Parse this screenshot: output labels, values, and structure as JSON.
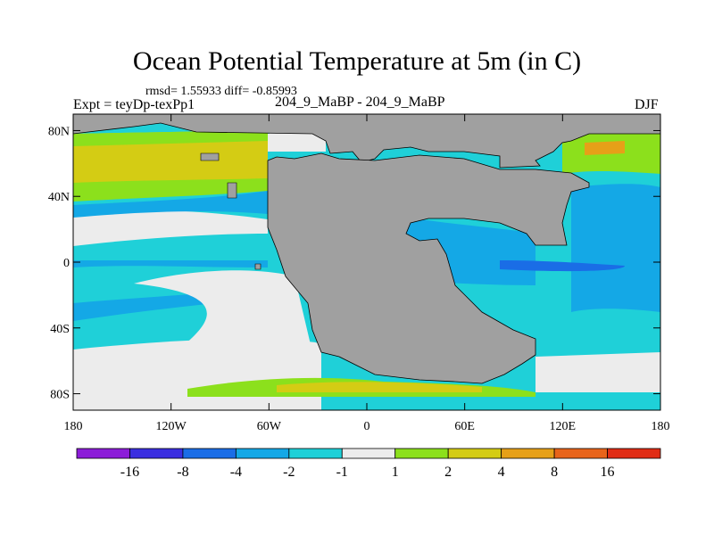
{
  "title": "Ocean Potential Temperature at 5m (in C)",
  "stats": "rmsd= 1.55933  diff= -0.85993",
  "experiment": "Expt = teyDp-texPp1",
  "period": "204_9_MaBP - 204_9_MaBP",
  "season": "DJF",
  "map": {
    "lon_range": [
      -180,
      180
    ],
    "lat_range": [
      -90,
      90
    ],
    "land_color": "#a0a0a0",
    "x_ticks": [
      {
        "lon": -180,
        "label": "180"
      },
      {
        "lon": -120,
        "label": "120W"
      },
      {
        "lon": -60,
        "label": "60W"
      },
      {
        "lon": 0,
        "label": "0"
      },
      {
        "lon": 60,
        "label": "60E"
      },
      {
        "lon": 120,
        "label": "120E"
      },
      {
        "lon": 180,
        "label": "180"
      }
    ],
    "y_ticks": [
      {
        "lat": 80,
        "label": "80N"
      },
      {
        "lat": 40,
        "label": "40N"
      },
      {
        "lat": 0,
        "label": "0"
      },
      {
        "lat": -40,
        "label": "40S"
      },
      {
        "lat": -80,
        "label": "80S"
      }
    ]
  },
  "colorbar": {
    "colors": [
      "#8c1cd8",
      "#3a2ee0",
      "#1a6de6",
      "#14a8e6",
      "#1fd0d8",
      "#ececec",
      "#8ce01c",
      "#d4cc14",
      "#e6a018",
      "#e8641a",
      "#e02c14"
    ],
    "labels": [
      "-16",
      "-8",
      "-4",
      "-2",
      "-1",
      "1",
      "2",
      "4",
      "8",
      "16"
    ]
  }
}
